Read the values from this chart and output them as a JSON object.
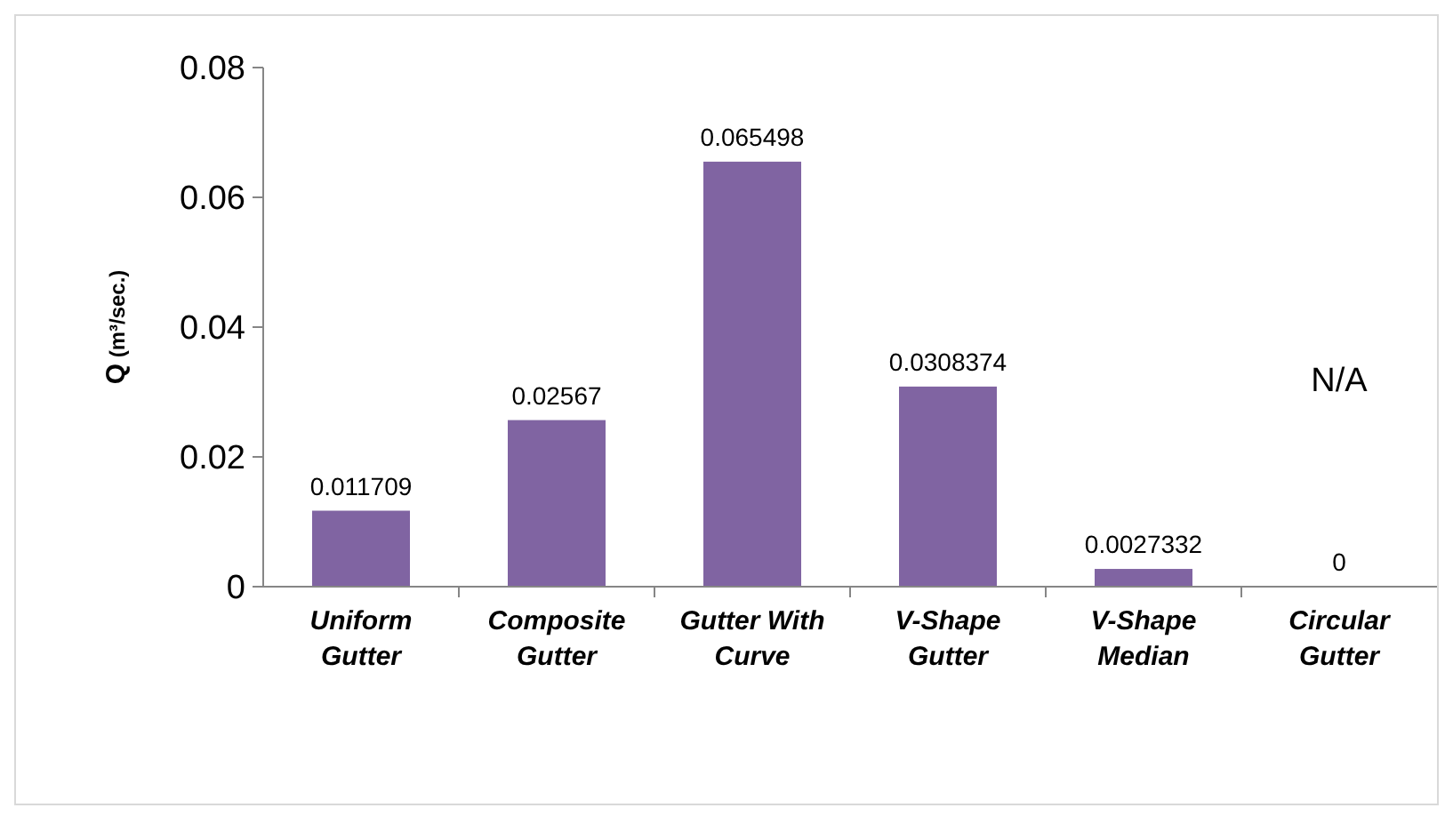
{
  "chart_data": {
    "type": "bar",
    "ylabel": "Q (m³/sec.)",
    "categories": [
      "Uniform Gutter",
      "Composite Gutter",
      "Gutter With Curve",
      "V-Shape Gutter",
      "V-Shape Median",
      "Circular Gutter"
    ],
    "values": [
      0.011709,
      0.02567,
      0.065498,
      0.0308374,
      0.0027332,
      0
    ],
    "color": "#8064a2",
    "ylim": [
      0,
      0.08
    ],
    "yticks": [
      0,
      0.02,
      0.04,
      0.06,
      0.08
    ],
    "grid": false,
    "data_labels": true,
    "annotations": [
      "N/A"
    ]
  }
}
